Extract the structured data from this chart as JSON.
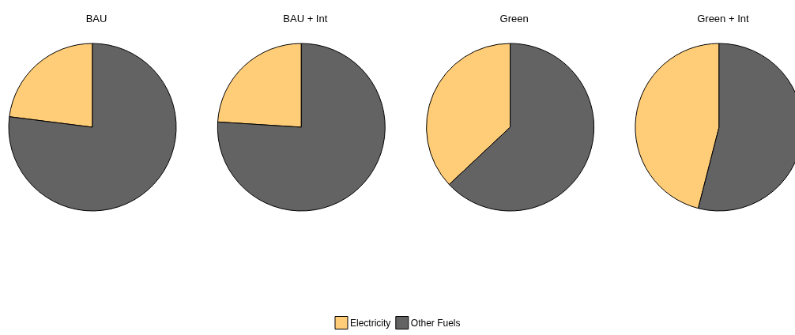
{
  "chart_data": {
    "type": "pie",
    "categories": [
      "Electricity",
      "Other Fuels"
    ],
    "colors": [
      "#ffcc77",
      "#636363"
    ],
    "legend": "bottom",
    "series": [
      {
        "name": "BAU",
        "values": [
          23,
          77
        ]
      },
      {
        "name": "BAU + Int",
        "values": [
          24,
          76
        ]
      },
      {
        "name": "Green",
        "values": [
          37,
          63
        ]
      },
      {
        "name": "Green + Int",
        "values": [
          46,
          54
        ]
      }
    ]
  }
}
